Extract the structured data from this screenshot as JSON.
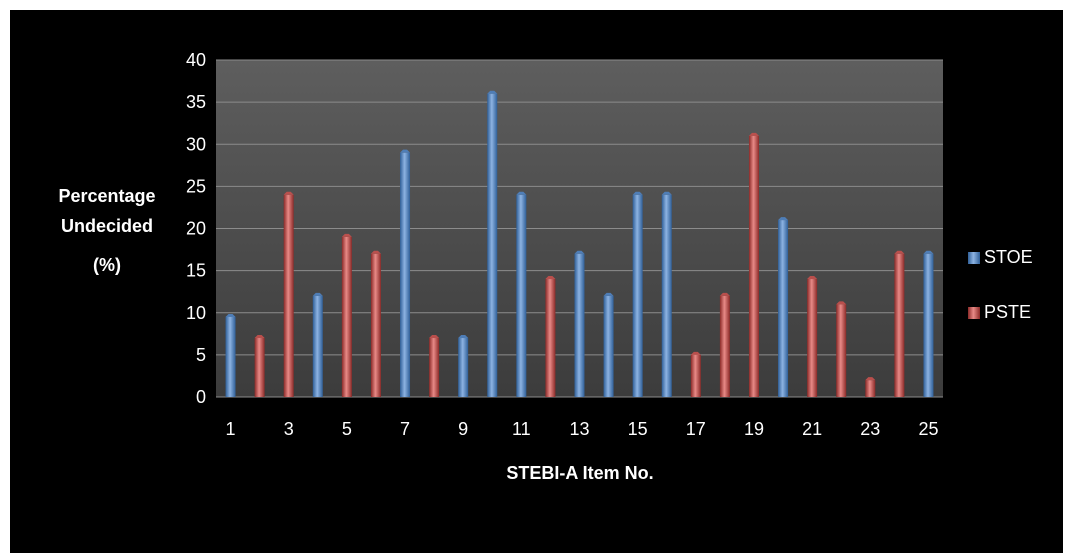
{
  "chart_data": {
    "type": "bar",
    "title": "",
    "xlabel": "STEBI-A Item No.",
    "ylabel_lines": [
      "Percentage",
      "Undecided",
      "(%)"
    ],
    "ylim": [
      0,
      40
    ],
    "yticks": [
      0,
      5,
      10,
      15,
      20,
      25,
      30,
      35,
      40
    ],
    "categories": [
      "1",
      "2",
      "3",
      "4",
      "5",
      "6",
      "7",
      "8",
      "9",
      "10",
      "11",
      "12",
      "13",
      "14",
      "15",
      "16",
      "17",
      "18",
      "19",
      "20",
      "21",
      "22",
      "23",
      "24",
      "25"
    ],
    "x_tick_labels": [
      "1",
      "3",
      "5",
      "7",
      "9",
      "11",
      "13",
      "15",
      "17",
      "19",
      "21",
      "23",
      "25"
    ],
    "grid": true,
    "legend_position": "right",
    "series": [
      {
        "name": "STOE",
        "color": "#4f81bd",
        "values": [
          9.5,
          0,
          0,
          12,
          0,
          0,
          29,
          0,
          7,
          36,
          24,
          0,
          17,
          12,
          24,
          24,
          0,
          0,
          0,
          21,
          0,
          0,
          0,
          0,
          17
        ]
      },
      {
        "name": "PSTE",
        "color": "#c0504d",
        "values": [
          0,
          7,
          24,
          0,
          19,
          17,
          0,
          7,
          0,
          0,
          0,
          14,
          0,
          0,
          0,
          0,
          5,
          12,
          31,
          0,
          14,
          11,
          2,
          17,
          0
        ]
      }
    ]
  }
}
